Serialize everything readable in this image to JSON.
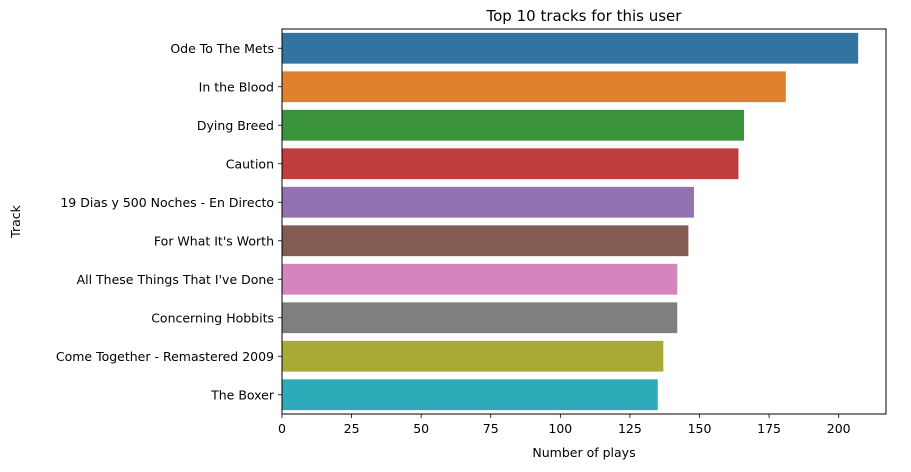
{
  "chart_data": {
    "type": "bar",
    "orientation": "horizontal",
    "title": "Top 10 tracks for this user",
    "xlabel": "Number of plays",
    "ylabel": "Track",
    "categories": [
      "Ode To The Mets",
      "In the Blood",
      "Dying Breed",
      "Caution",
      "19 Dias y 500 Noches - En Directo",
      "For What It's Worth",
      "All These Things That I've Done",
      "Concerning Hobbits",
      "Come Together - Remastered 2009",
      "The Boxer"
    ],
    "values": [
      207,
      181,
      166,
      164,
      148,
      146,
      142,
      142,
      137,
      135
    ],
    "colors": [
      "#3274a1",
      "#e1812c",
      "#3a923a",
      "#c03d3e",
      "#9372b2",
      "#845b53",
      "#d684bd",
      "#7f7f7f",
      "#a9aa35",
      "#2eabb8"
    ],
    "xlim": [
      0,
      217
    ],
    "xticks": [
      0,
      25,
      50,
      75,
      100,
      125,
      150,
      175,
      200
    ],
    "grid": false,
    "legend": "none"
  }
}
